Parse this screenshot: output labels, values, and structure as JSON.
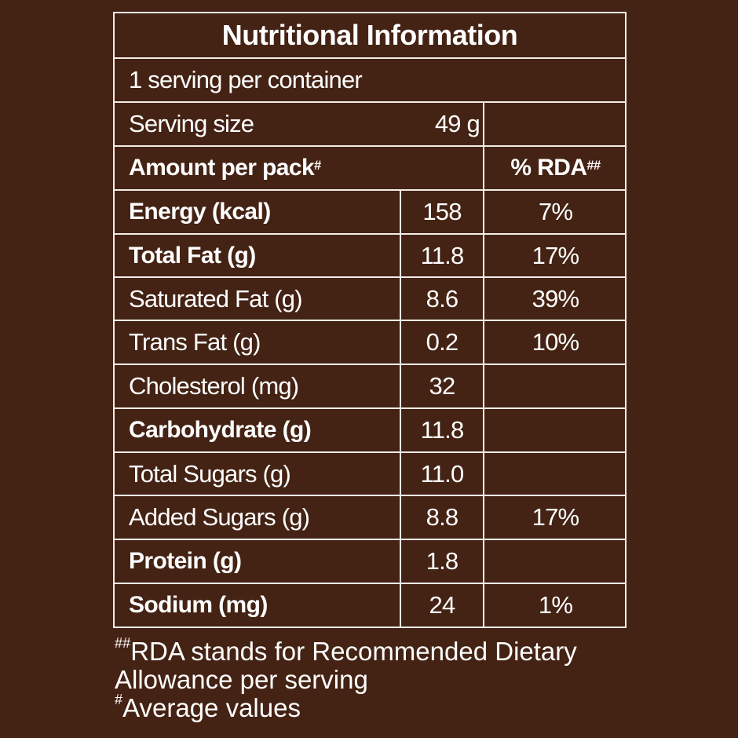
{
  "label": {
    "title": "Nutritional Information",
    "servings_text": "1 serving per container",
    "serving_size_label": "Serving size",
    "serving_size_value": "49 g",
    "amount_header": "Amount per pack",
    "amount_header_mark": "#",
    "rda_header": "% RDA",
    "rda_header_mark": "##",
    "rows": [
      {
        "name": "Energy (kcal)",
        "amount": "158",
        "rda": "7%"
      },
      {
        "name": "Total Fat (g)",
        "amount": "11.8",
        "rda": "17%"
      },
      {
        "name": "Saturated Fat (g)",
        "amount": "8.6",
        "rda": "39%"
      },
      {
        "name": "Trans Fat (g)",
        "amount": "0.2",
        "rda": "10%"
      },
      {
        "name": "Cholesterol (mg)",
        "amount": "32",
        "rda": ""
      },
      {
        "name": "Carbohydrate (g)",
        "amount": "11.8",
        "rda": ""
      },
      {
        "name": "Total Sugars (g)",
        "amount": "11.0",
        "rda": ""
      },
      {
        "name": "Added Sugars (g)",
        "amount": "8.8",
        "rda": "17%"
      },
      {
        "name": "Protein (g)",
        "amount": "1.8",
        "rda": ""
      },
      {
        "name": "Sodium (mg)",
        "amount": "24",
        "rda": "1%"
      }
    ]
  },
  "footnotes": {
    "rda_mark": "##",
    "rda_line1": "RDA stands for Recommended Dietary",
    "rda_line2": "Allowance per serving",
    "avg_mark": "#",
    "avg_text": "Average values"
  },
  "colors": {
    "background": "#442314",
    "lines": "#f2ece8",
    "text": "#ffffff"
  }
}
